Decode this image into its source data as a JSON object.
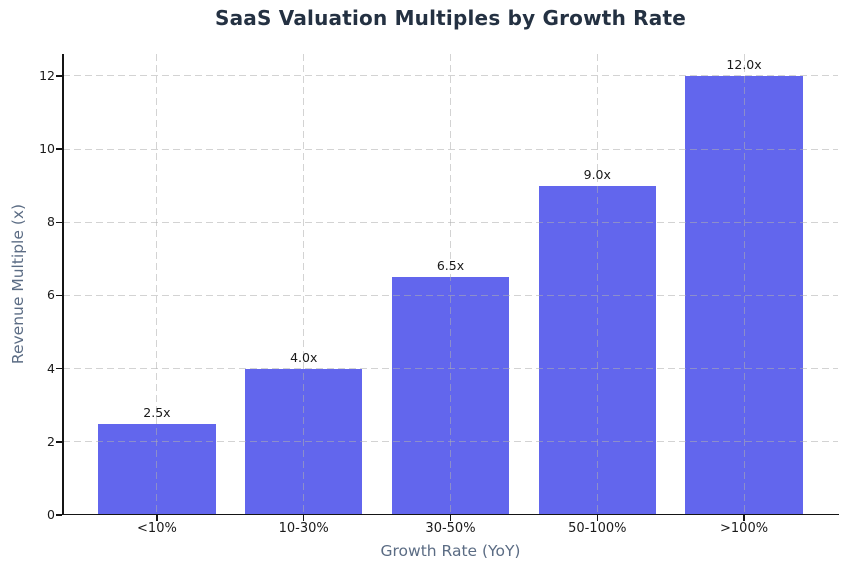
{
  "chart_data": {
    "type": "bar",
    "title": "SaaS Valuation Multiples by Growth Rate",
    "xlabel": "Growth Rate (YoY)",
    "ylabel": "Revenue Multiple (x)",
    "categories": [
      "<10%",
      "10-30%",
      "30-50%",
      "50-100%",
      ">100%"
    ],
    "values": [
      2.5,
      4.0,
      6.5,
      9.0,
      12.0
    ],
    "bar_labels": [
      "2.5x",
      "4.0x",
      "6.5x",
      "9.0x",
      "12.0x"
    ],
    "yticks": [
      0,
      2,
      4,
      6,
      8,
      10,
      12
    ],
    "ylim": [
      0,
      12.6
    ],
    "xlim": [
      -0.64,
      4.64
    ],
    "bar_width": 0.8,
    "grid": {
      "visible": true,
      "style": "dashed",
      "axes": "both",
      "above_bars": true
    },
    "legend_position": "none",
    "colors": {
      "bar": "#6266ed",
      "title": "#243142",
      "axis_label": "#5b6c84",
      "tick_label": "#1a1a1a",
      "value_label": "#1a1a1a",
      "grid": "rgba(175,175,175,0.55)",
      "spine": "#151515",
      "background": "#ffffff"
    }
  }
}
